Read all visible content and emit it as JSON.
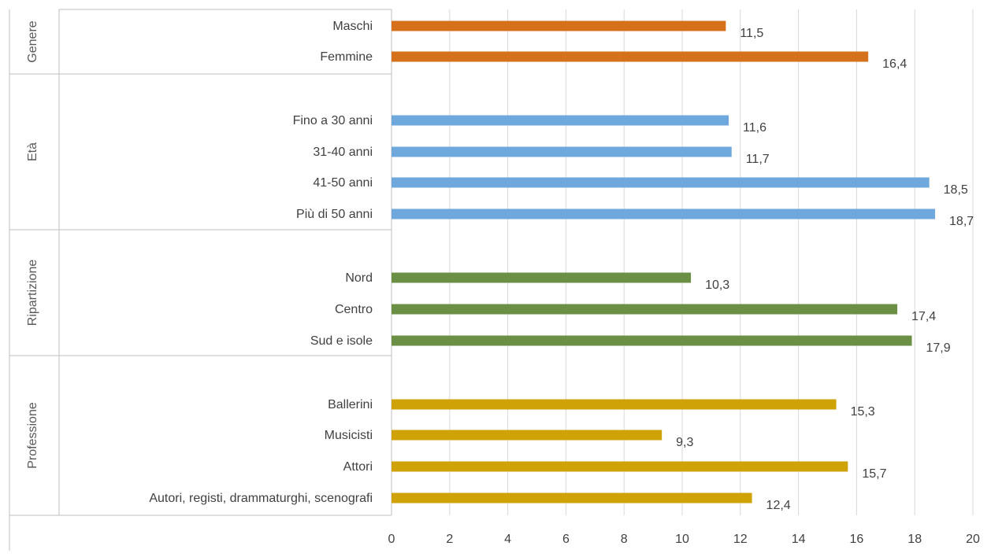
{
  "chart_data": {
    "type": "bar",
    "orientation": "horizontal",
    "xlim": [
      0,
      20
    ],
    "xticks": [
      0,
      2,
      4,
      6,
      8,
      10,
      12,
      14,
      16,
      18,
      20
    ],
    "grid": "vertical",
    "groups": [
      {
        "name": "Genere",
        "color": "#D4711A",
        "items": [
          {
            "label": "Maschi",
            "value": 11.5,
            "value_label": "11,5"
          },
          {
            "label": "Femmine",
            "value": 16.4,
            "value_label": "16,4"
          }
        ]
      },
      {
        "name": "Età",
        "color": "#6FA8DC",
        "items": [
          {
            "label": "Fino a 30 anni",
            "value": 11.6,
            "value_label": "11,6"
          },
          {
            "label": "31-40 anni",
            "value": 11.7,
            "value_label": "11,7"
          },
          {
            "label": "41-50 anni",
            "value": 18.5,
            "value_label": "18,5"
          },
          {
            "label": "Più di 50 anni",
            "value": 18.7,
            "value_label": "18,7"
          }
        ]
      },
      {
        "name": "Ripartizione",
        "color": "#6A8F45",
        "items": [
          {
            "label": "Nord",
            "value": 10.3,
            "value_label": "10,3"
          },
          {
            "label": "Centro",
            "value": 17.4,
            "value_label": "17,4"
          },
          {
            "label": "Sud e isole",
            "value": 17.9,
            "value_label": "17,9"
          }
        ]
      },
      {
        "name": "Professione",
        "color": "#CFA207",
        "items": [
          {
            "label": "Ballerini",
            "value": 15.3,
            "value_label": "15,3"
          },
          {
            "label": "Musicisti",
            "value": 9.3,
            "value_label": "9,3"
          },
          {
            "label": "Attori",
            "value": 15.7,
            "value_label": "15,7"
          },
          {
            "label": "Autori, registi, drammaturghi, scenografi",
            "value": 12.4,
            "value_label": "12,4"
          }
        ]
      }
    ]
  }
}
